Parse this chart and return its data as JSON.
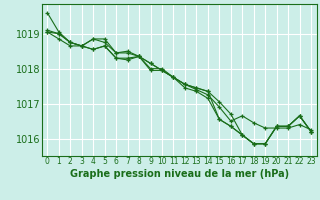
{
  "title": "Graphe pression niveau de la mer (hPa)",
  "bg_color": "#cceee8",
  "grid_color": "#ffffff",
  "line_color": "#1a6e1a",
  "ylim": [
    1015.5,
    1019.85
  ],
  "xlim": [
    -0.5,
    23.5
  ],
  "yticks": [
    1016,
    1017,
    1018,
    1019
  ],
  "xticks": [
    0,
    1,
    2,
    3,
    4,
    5,
    6,
    7,
    8,
    9,
    10,
    11,
    12,
    13,
    14,
    15,
    16,
    17,
    18,
    19,
    20,
    21,
    22,
    23
  ],
  "series": [
    [
      1019.6,
      1019.05,
      1018.75,
      1018.65,
      1018.55,
      1018.65,
      1018.3,
      1018.25,
      1018.35,
      1018.0,
      1018.0,
      1017.75,
      1017.55,
      1017.4,
      1017.25,
      1016.9,
      1016.5,
      1016.65,
      1016.45,
      1016.3,
      1016.3,
      1016.3,
      1016.4,
      1016.25
    ],
    [
      1019.1,
      1019.0,
      1018.75,
      1018.65,
      1018.85,
      1018.85,
      1018.45,
      1018.45,
      1018.35,
      1018.15,
      1017.95,
      1017.75,
      1017.55,
      1017.45,
      1017.35,
      1017.05,
      1016.7,
      1016.1,
      1015.85,
      1015.85,
      1016.35,
      1016.35,
      1016.65,
      1016.2
    ],
    [
      1019.05,
      1019.0,
      1018.75,
      1018.65,
      1018.85,
      1018.75,
      1018.45,
      1018.5,
      1018.35,
      1018.15,
      1017.95,
      1017.75,
      1017.55,
      1017.45,
      1017.35,
      1016.55,
      1016.35,
      1016.1,
      1015.85,
      1015.85,
      1016.35,
      1016.35,
      1016.65,
      1016.2
    ],
    [
      1019.05,
      1018.85,
      1018.65,
      1018.65,
      1018.55,
      1018.65,
      1018.3,
      1018.3,
      1018.35,
      1017.95,
      1017.95,
      1017.75,
      1017.45,
      1017.35,
      1017.15,
      1016.55,
      1016.35,
      1016.1,
      1015.85,
      1015.85,
      1016.35,
      1016.35,
      1016.65,
      1016.2
    ]
  ],
  "xlabel_fontsize": 7,
  "ytick_fontsize": 7,
  "xtick_fontsize": 5.5
}
